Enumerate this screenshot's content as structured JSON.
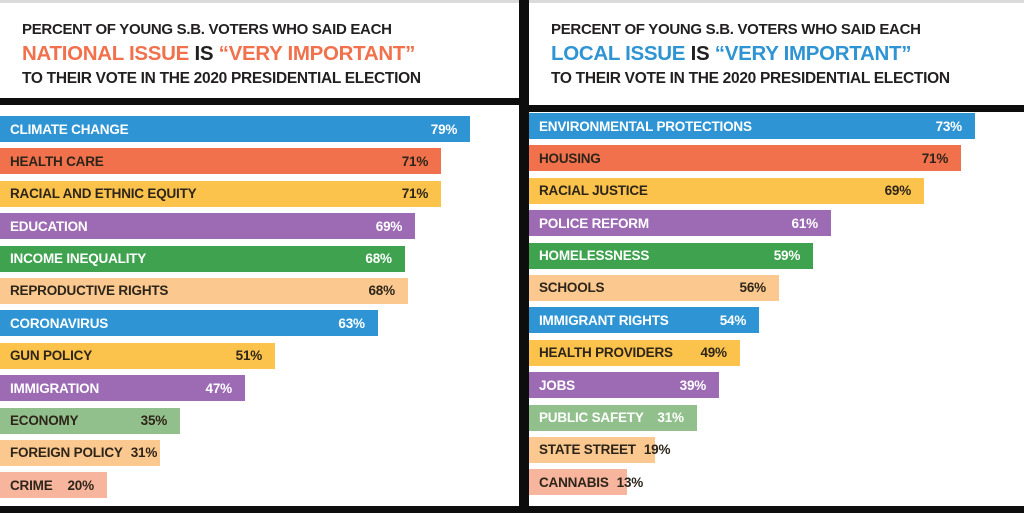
{
  "palette": {
    "blue": "#2E94D4",
    "orange": "#F2714D",
    "yellow": "#FBC34C",
    "purple": "#9C6BB3",
    "green": "#3FA24F",
    "peach": "#FBC98F",
    "lightgreen": "#92C08C",
    "salmon": "#F7B59E",
    "text_dark": "#2D2519",
    "text_light": "#FFFFFF",
    "frame_black": "#0D0D0D",
    "top_strip_gray": "#DBDBDB",
    "title_black": "#221F1F"
  },
  "panels": [
    {
      "title_line1": "PERCENT OF YOUNG S.B. VOTERS WHO SAID EACH",
      "title_issue": "NATIONAL ISSUE",
      "title_is": "IS",
      "title_important": "“VERY IMPORTANT”",
      "title_line3": "TO THEIR VOTE IN THE 2020 PRESIDENTIAL ELECTION",
      "accent": "#F2714D"
    },
    {
      "title_line1": "PERCENT OF YOUNG S.B. VOTERS WHO SAID EACH",
      "title_issue": "LOCAL ISSUE",
      "title_is": "IS",
      "title_important": "“VERY IMPORTANT”",
      "title_line3": "TO THEIR VOTE IN THE 2020 PRESIDENTIAL ELECTION",
      "accent": "#2E94D4"
    }
  ],
  "chart_data": [
    {
      "type": "bar",
      "orientation": "horizontal",
      "title": "PERCENT OF YOUNG S.B. VOTERS WHO SAID EACH NATIONAL ISSUE IS “VERY IMPORTANT” TO THEIR VOTE IN THE 2020 PRESIDENTIAL ELECTION",
      "unit": "%",
      "xlim": [
        0,
        100
      ],
      "grid": false,
      "legend": false,
      "value_labels": "inside-right",
      "categories": [
        "CLIMATE CHANGE",
        "HEALTH CARE",
        "RACIAL AND ETHNIC EQUITY",
        "EDUCATION",
        "INCOME INEQUALITY",
        "REPRODUCTIVE RIGHTS",
        "CORONAVIRUS",
        "GUN POLICY",
        "IMMIGRATION",
        "ECONOMY",
        "FOREIGN POLICY",
        "CRIME"
      ],
      "values": [
        79,
        71,
        71,
        69,
        68,
        68,
        63,
        51,
        47,
        35,
        31,
        20
      ],
      "bar_colors": [
        "blue",
        "orange",
        "yellow",
        "purple",
        "green",
        "peach",
        "blue",
        "yellow",
        "purple",
        "lightgreen",
        "peach",
        "salmon"
      ],
      "label_contrast": [
        "light",
        "dark",
        "dark",
        "light",
        "light",
        "dark",
        "light",
        "dark",
        "light",
        "dark",
        "dark",
        "dark"
      ],
      "bar_width_pct": [
        90.6,
        85.0,
        85.0,
        80.0,
        78.0,
        78.6,
        72.8,
        53.0,
        47.2,
        34.7,
        30.8,
        20.6
      ]
    },
    {
      "type": "bar",
      "orientation": "horizontal",
      "title": "PERCENT OF YOUNG S.B. VOTERS WHO SAID EACH LOCAL ISSUE IS “VERY IMPORTANT” TO THEIR VOTE IN THE 2020 PRESIDENTIAL ELECTION",
      "unit": "%",
      "xlim": [
        0,
        100
      ],
      "grid": false,
      "legend": false,
      "value_labels": "inside-right",
      "categories": [
        "ENVIRONMENTAL PROTECTIONS",
        "HOUSING",
        "RACIAL JUSTICE",
        "POLICE REFORM",
        "HOMELESSNESS",
        "SCHOOLS",
        "IMMIGRANT RIGHTS",
        "HEALTH PROVIDERS",
        "JOBS",
        "PUBLIC SAFETY",
        "STATE STREET",
        "CANNABIS"
      ],
      "values": [
        73,
        71,
        69,
        61,
        59,
        56,
        54,
        49,
        39,
        31,
        19,
        13
      ],
      "bar_colors": [
        "blue",
        "orange",
        "yellow",
        "purple",
        "green",
        "peach",
        "blue",
        "yellow",
        "purple",
        "lightgreen",
        "peach",
        "salmon"
      ],
      "label_contrast": [
        "light",
        "dark",
        "dark",
        "light",
        "light",
        "dark",
        "light",
        "dark",
        "light",
        "light",
        "dark",
        "dark"
      ],
      "bar_width_pct": [
        90.1,
        87.3,
        79.8,
        61.0,
        57.4,
        50.5,
        46.5,
        42.6,
        38.4,
        33.9,
        25.5,
        19.8
      ]
    }
  ]
}
